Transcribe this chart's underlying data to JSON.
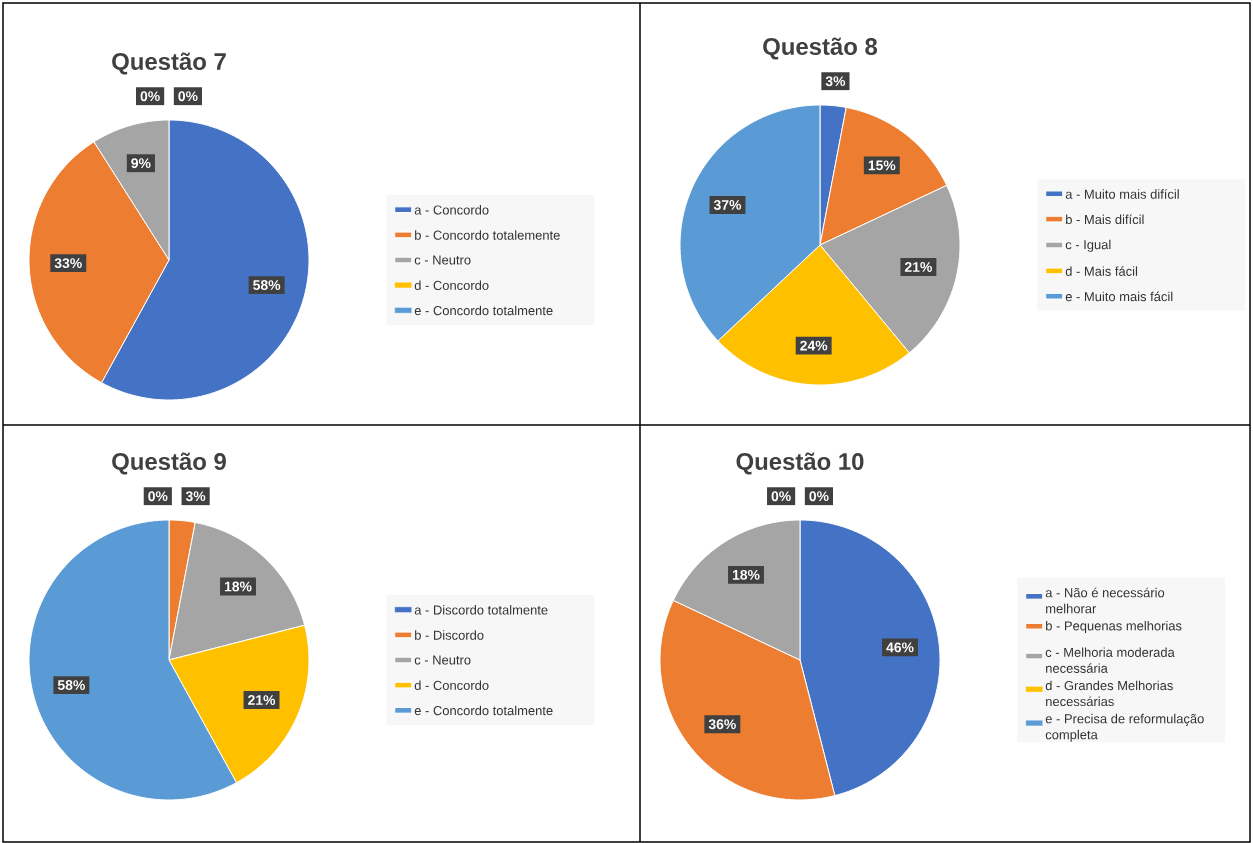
{
  "chart_data": [
    {
      "type": "pie",
      "title": "Questão 7",
      "legend": "right",
      "categories": [
        "a - Concordo",
        "b - Concordo totalemente",
        "c - Neutro",
        "d - Concordo",
        "e - Concordo totalmente"
      ],
      "values": [
        58,
        33,
        9,
        0,
        0
      ],
      "value_labels": [
        "58%",
        "33%",
        "9%",
        "0%",
        "0%"
      ],
      "colors": [
        "#4472c4",
        "#ed7d31",
        "#a5a5a5",
        "#ffc000",
        "#5b9bd5"
      ]
    },
    {
      "type": "pie",
      "title": "Questão 8",
      "legend": "right",
      "categories": [
        "a - Muito mais difícil",
        "b - Mais difícil",
        "c - Igual",
        "d - Mais fácil",
        "e - Muito mais fácil"
      ],
      "values": [
        3,
        15,
        21,
        24,
        37
      ],
      "value_labels": [
        "3%",
        "15%",
        "21%",
        "24%",
        "37%"
      ],
      "colors": [
        "#4472c4",
        "#ed7d31",
        "#a5a5a5",
        "#ffc000",
        "#5b9bd5"
      ]
    },
    {
      "type": "pie",
      "title": "Questão 9",
      "legend": "right",
      "categories": [
        "a - Discordo totalmente",
        "b - Discordo",
        "c - Neutro",
        "d - Concordo",
        "e - Concordo totalmente"
      ],
      "values": [
        0,
        3,
        18,
        21,
        58
      ],
      "value_labels": [
        "0%",
        "3%",
        "18%",
        "21%",
        "58%"
      ],
      "colors": [
        "#4472c4",
        "#ed7d31",
        "#a5a5a5",
        "#ffc000",
        "#5b9bd5"
      ]
    },
    {
      "type": "pie",
      "title": "Questão 10",
      "legend": "right",
      "categories": [
        "a - Não é necessário melhorar",
        "b - Pequenas melhorias",
        "c - Melhoria moderada necessária",
        "d - Grandes Melhorias necessárias",
        "e - Precisa de reformulação completa"
      ],
      "values": [
        46,
        36,
        18,
        0,
        0
      ],
      "value_labels": [
        "46%",
        "36%",
        "18%",
        "0%",
        "0%"
      ],
      "colors": [
        "#4472c4",
        "#ed7d31",
        "#a5a5a5",
        "#ffc000",
        "#5b9bd5"
      ]
    }
  ]
}
